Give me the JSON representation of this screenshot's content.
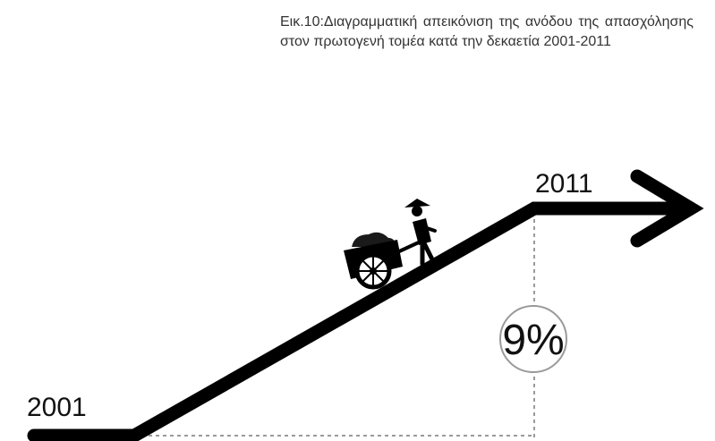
{
  "caption": "Εικ.10:Διαγραμματική απεικόνιση της ανόδου της απασχόλησης στον πρωτογενή τομέα κατά την δεκαετία 2001-2011",
  "start_year": "2001",
  "end_year": "2011",
  "percentage": "9%",
  "illustration": "farmer-pushing-wheelbarrow-icon"
}
